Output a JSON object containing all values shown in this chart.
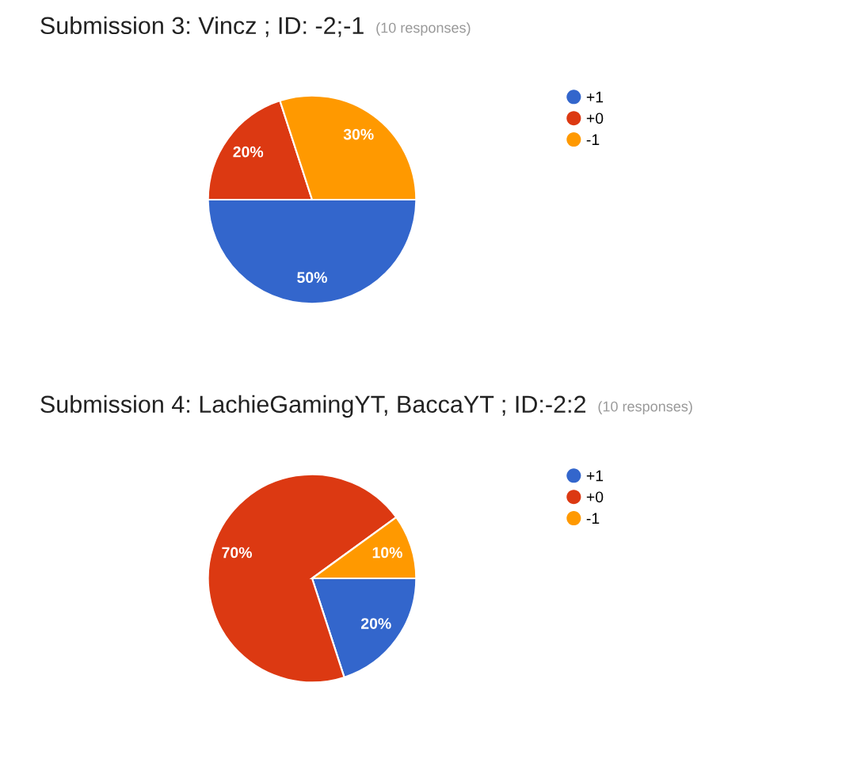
{
  "chart_data": [
    {
      "type": "pie",
      "title": "Submission 3: Vincz ; ID: -2;-1",
      "subtitle": "(10 responses)",
      "categories": [
        "+1",
        "+0",
        "-1"
      ],
      "values": [
        50,
        20,
        30
      ],
      "colors": [
        "#3366cc",
        "#dc3912",
        "#ff9900"
      ],
      "value_labels": [
        "50%",
        "20%",
        "30%"
      ],
      "legend": "right"
    },
    {
      "type": "pie",
      "title": "Submission 4: LachieGamingYT, BaccaYT ; ID:-2:2",
      "subtitle": "(10 responses)",
      "categories": [
        "+1",
        "+0",
        "-1"
      ],
      "values": [
        20,
        70,
        10
      ],
      "colors": [
        "#3366cc",
        "#dc3912",
        "#ff9900"
      ],
      "value_labels": [
        "20%",
        "70%",
        "10%"
      ],
      "legend": "right"
    }
  ]
}
